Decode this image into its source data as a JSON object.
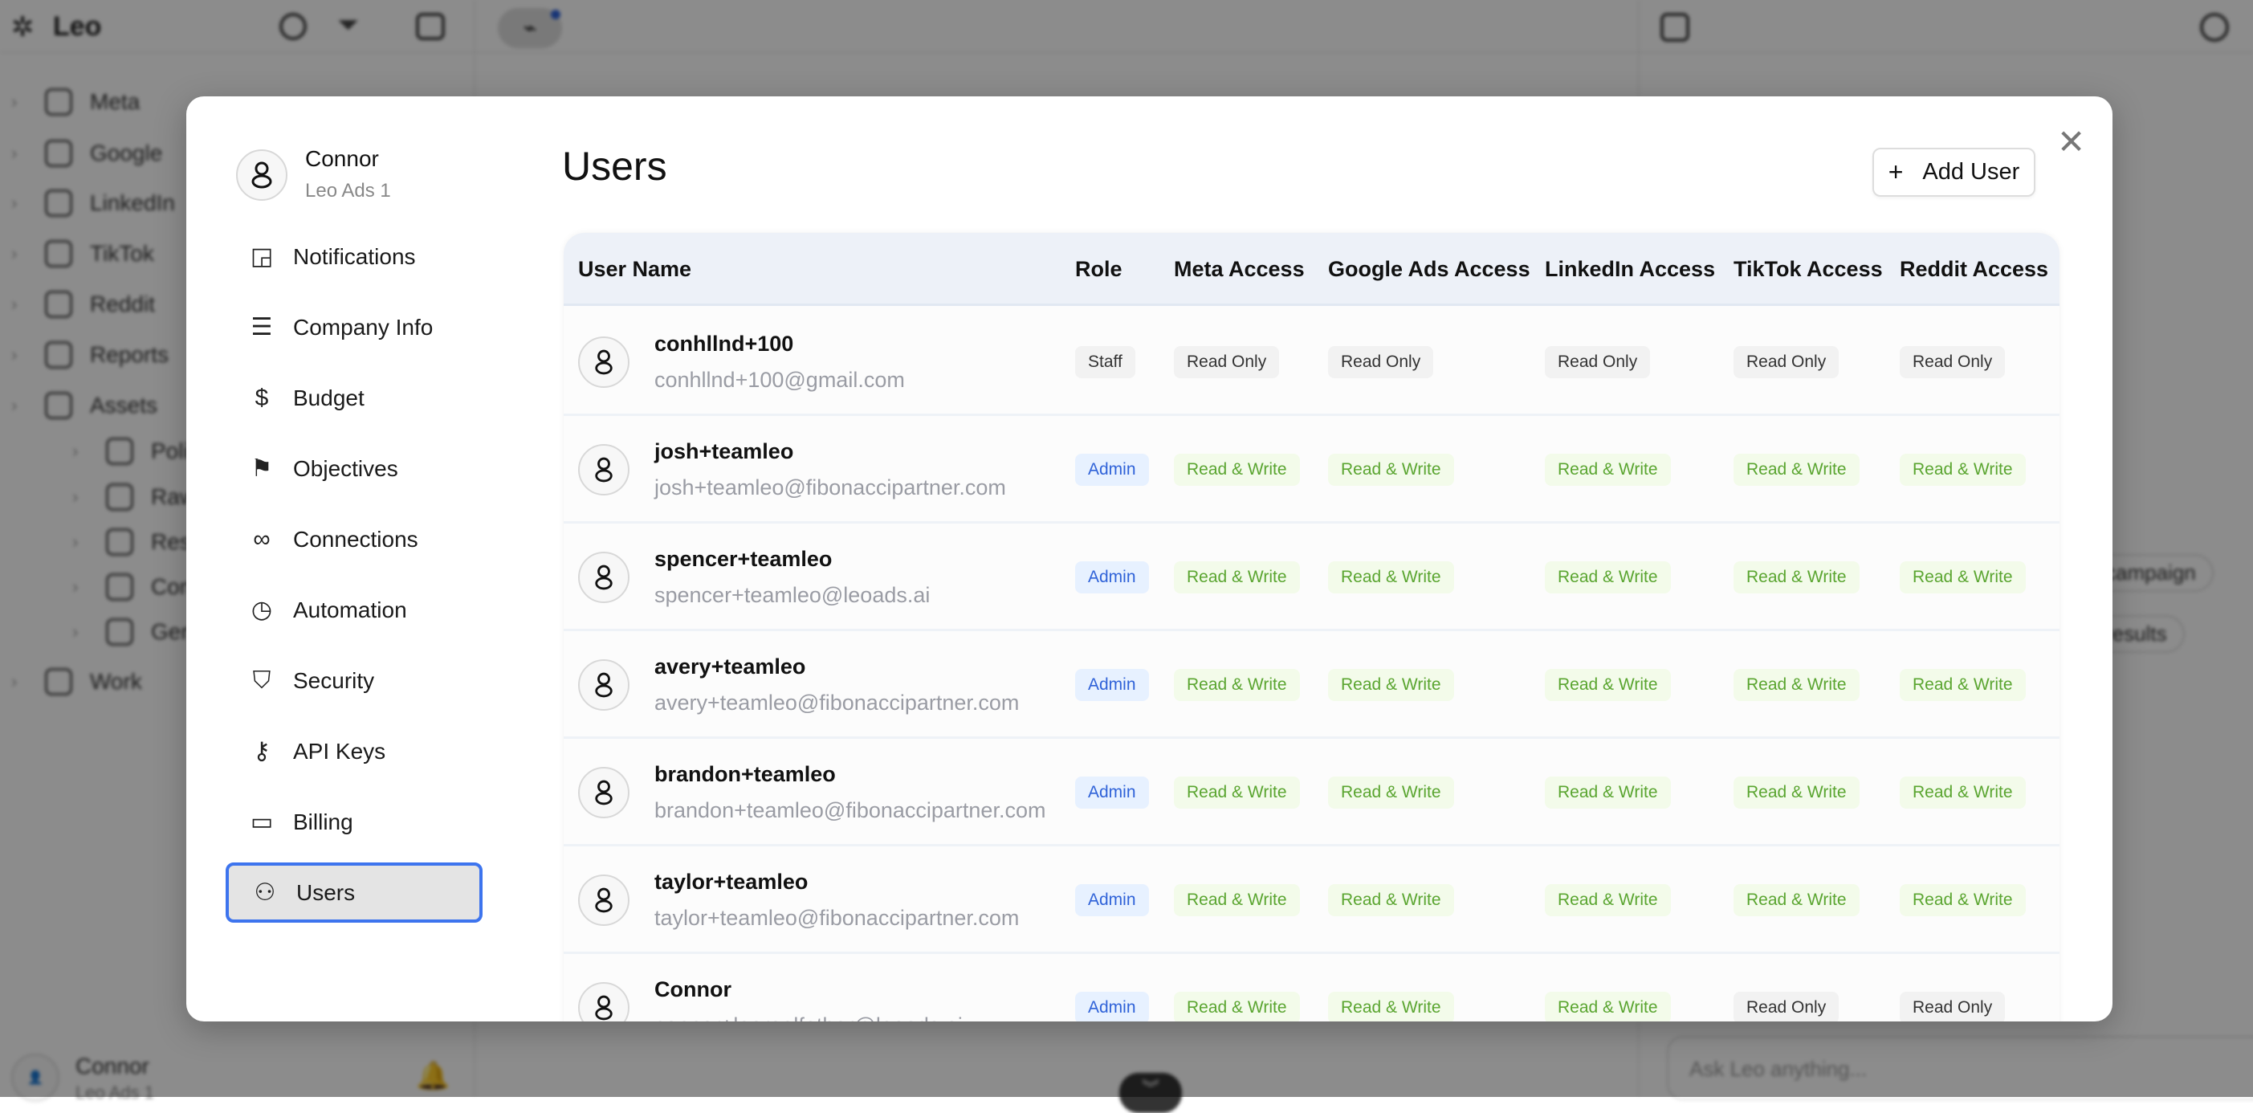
{
  "app": {
    "logo": "Leo",
    "sidebar": [
      {
        "label": "Meta"
      },
      {
        "label": "Google"
      },
      {
        "label": "LinkedIn"
      },
      {
        "label": "TikTok"
      },
      {
        "label": "Reddit"
      },
      {
        "label": "Reports"
      },
      {
        "label": "Assets"
      },
      {
        "label": "Polished A"
      },
      {
        "label": "Raw Asse"
      },
      {
        "label": "Resource"
      },
      {
        "label": "Competit"
      },
      {
        "label": "Generate"
      },
      {
        "label": "Work"
      }
    ],
    "footer_user": {
      "name": "Connor",
      "org": "Leo Ads 1"
    },
    "chips": [
      "campaign",
      "results"
    ],
    "chat_placeholder": "Ask Leo anything..."
  },
  "modal": {
    "profile": {
      "name": "Connor",
      "org": "Leo Ads 1"
    },
    "nav": [
      {
        "label": "Notifications",
        "icon": "notification-icon"
      },
      {
        "label": "Company Info",
        "icon": "sliders-icon"
      },
      {
        "label": "Budget",
        "icon": "dollar-icon"
      },
      {
        "label": "Objectives",
        "icon": "flag-icon"
      },
      {
        "label": "Connections",
        "icon": "link-icon"
      },
      {
        "label": "Automation",
        "icon": "timer-icon"
      },
      {
        "label": "Security",
        "icon": "shield-icon"
      },
      {
        "label": "API Keys",
        "icon": "key-icon"
      },
      {
        "label": "Billing",
        "icon": "card-icon"
      },
      {
        "label": "Users",
        "icon": "users-icon",
        "selected": true
      }
    ],
    "title": "Users",
    "add_user": "Add User",
    "accent": "#3d74ee",
    "columns": [
      "User Name",
      "Role",
      "Meta Access",
      "Google Ads Access",
      "LinkedIn Access",
      "TikTok Access",
      "Reddit Access"
    ],
    "users": [
      {
        "name": "conhllnd+100",
        "email": "conhllnd+100@gmail.com",
        "role": "Staff",
        "access": [
          "Read Only",
          "Read Only",
          "Read Only",
          "Read Only",
          "Read Only"
        ]
      },
      {
        "name": "josh+teamleo",
        "email": "josh+teamleo@fibonaccipartner.com",
        "role": "Admin",
        "access": [
          "Read & Write",
          "Read & Write",
          "Read & Write",
          "Read & Write",
          "Read & Write"
        ]
      },
      {
        "name": "spencer+teamleo",
        "email": "spencer+teamleo@leoads.ai",
        "role": "Admin",
        "access": [
          "Read & Write",
          "Read & Write",
          "Read & Write",
          "Read & Write",
          "Read & Write"
        ]
      },
      {
        "name": "avery+teamleo",
        "email": "avery+teamleo@fibonaccipartner.com",
        "role": "Admin",
        "access": [
          "Read & Write",
          "Read & Write",
          "Read & Write",
          "Read & Write",
          "Read & Write"
        ]
      },
      {
        "name": "brandon+teamleo",
        "email": "brandon+teamleo@fibonaccipartner.com",
        "role": "Admin",
        "access": [
          "Read & Write",
          "Read & Write",
          "Read & Write",
          "Read & Write",
          "Read & Write"
        ]
      },
      {
        "name": "taylor+teamleo",
        "email": "taylor+teamleo@fibonaccipartner.com",
        "role": "Admin",
        "access": [
          "Read & Write",
          "Read & Write",
          "Read & Write",
          "Read & Write",
          "Read & Write"
        ]
      },
      {
        "name": "Connor",
        "email": "connor+leorealfather@leoads.ai",
        "role": "Admin",
        "access": [
          "Read & Write",
          "Read & Write",
          "Read & Write",
          "Read Only",
          "Read Only"
        ]
      }
    ]
  }
}
